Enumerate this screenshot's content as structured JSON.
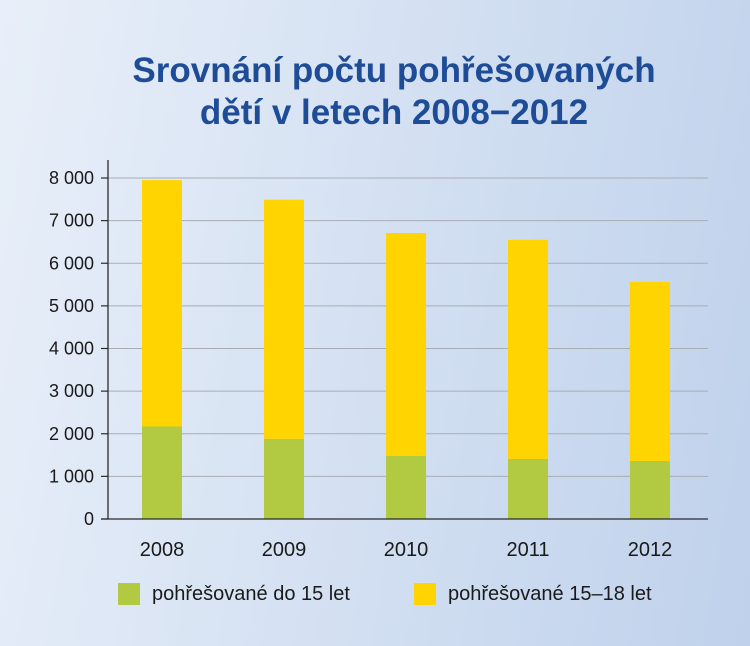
{
  "colors": {
    "title": "#1e4c97",
    "text": "#1a1a1a",
    "gridline": "#a9adb3",
    "axis": "#2b2b2b",
    "background_left": "#e8eff9",
    "background_right": "#bfd1eb"
  },
  "chart_data": {
    "type": "bar",
    "stacked": true,
    "title": [
      "Srovnání počtu pohřešovaných",
      "dětí v letech 2008−2012"
    ],
    "categories": [
      "2008",
      "2009",
      "2010",
      "2011",
      "2012"
    ],
    "series": [
      {
        "name": "pohřešované do 15 let",
        "color": "#b2ca42",
        "values": [
          2170,
          1880,
          1480,
          1410,
          1360
        ]
      },
      {
        "name": "pohřešované 15–18 let",
        "color": "#ffd400",
        "values": [
          5780,
          5610,
          5230,
          5140,
          4200
        ]
      }
    ],
    "ylim": [
      0,
      8000
    ],
    "yticks": [
      0,
      1000,
      2000,
      3000,
      4000,
      5000,
      6000,
      7000,
      8000
    ],
    "ytick_labels": [
      "0",
      "1 000",
      "2 000",
      "3 000",
      "4 000",
      "5 000",
      "6 000",
      "7 000",
      "8 000"
    ],
    "grid": true,
    "legend": "bottom"
  }
}
